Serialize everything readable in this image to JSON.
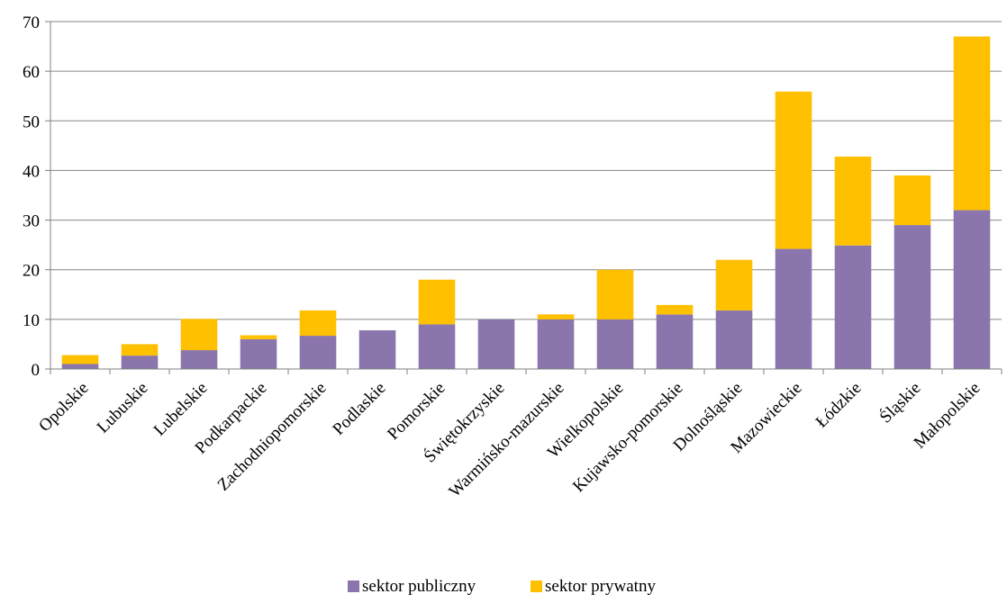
{
  "chart_data": {
    "type": "bar",
    "stacked": true,
    "categories": [
      "Opolskie",
      "Lubuskie",
      "Lubelskie",
      "Podkarpackie",
      "Zachodniopomorskie",
      "Podlaskie",
      "Pomorskie",
      "Świętokrzyskie",
      "Warmińsko-mazurskie",
      "Wielkopolskie",
      "Kujawsko-pomorskie",
      "Dolnośląskie",
      "Mazowieckie",
      "Łódzkie",
      "Śląskie",
      "Małopolskie"
    ],
    "series": [
      {
        "name": "sektor publiczny",
        "color": "#8b75ad",
        "values": [
          1,
          2.7,
          3.8,
          6,
          6.7,
          7.8,
          9,
          10,
          10,
          10,
          11,
          11.8,
          24.2,
          24.9,
          29,
          32
        ]
      },
      {
        "name": "sektor prywatny",
        "color": "#ffc000",
        "values": [
          1.8,
          2.3,
          6.3,
          0.8,
          5.1,
          0,
          9,
          0,
          1,
          10,
          1.9,
          10.2,
          31.7,
          17.9,
          10,
          35
        ]
      }
    ],
    "title": "",
    "xlabel": "",
    "ylabel": "",
    "ylim": [
      0,
      70
    ],
    "yticks": [
      "0",
      "10",
      "20",
      "30",
      "40",
      "50",
      "60",
      "70"
    ],
    "grid": true,
    "legend": "bottom"
  }
}
